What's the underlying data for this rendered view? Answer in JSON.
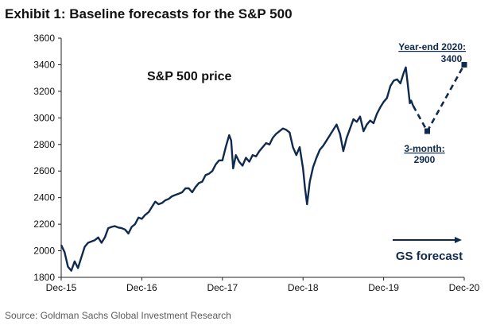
{
  "title": "Exhibit 1: Baseline forecasts for the S&P 500",
  "source": "Source: Goldman Sachs Global Investment Research",
  "colors": {
    "series": "#0f2a4f",
    "axis": "#222222",
    "text": "#111111"
  },
  "chart_data": {
    "type": "line",
    "title": "S&P 500 price",
    "xlabel": "",
    "ylabel": "",
    "ylim": [
      1800,
      3600
    ],
    "yticks": [
      1800,
      2000,
      2200,
      2400,
      2600,
      2800,
      3000,
      3200,
      3400,
      3600
    ],
    "xlim": [
      0,
      60
    ],
    "xticks": [
      {
        "label": "Dec-15",
        "month": 0
      },
      {
        "label": "Dec-16",
        "month": 12
      },
      {
        "label": "Dec-17",
        "month": 24
      },
      {
        "label": "Dec-18",
        "month": 36
      },
      {
        "label": "Dec-19",
        "month": 48
      },
      {
        "label": "Dec-20",
        "month": 60
      }
    ],
    "series": [
      {
        "name": "S&P 500 price",
        "style": "solid",
        "points": [
          [
            0,
            2043
          ],
          [
            0.5,
            1990
          ],
          [
            1,
            1880
          ],
          [
            1.5,
            1850
          ],
          [
            2,
            1920
          ],
          [
            2.5,
            1870
          ],
          [
            3,
            1950
          ],
          [
            3.5,
            2030
          ],
          [
            4,
            2060
          ],
          [
            4.5,
            2070
          ],
          [
            5,
            2080
          ],
          [
            5.5,
            2100
          ],
          [
            6,
            2060
          ],
          [
            6.5,
            2100
          ],
          [
            7,
            2170
          ],
          [
            7.5,
            2180
          ],
          [
            8,
            2185
          ],
          [
            8.5,
            2175
          ],
          [
            9,
            2170
          ],
          [
            9.5,
            2160
          ],
          [
            10,
            2130
          ],
          [
            10.5,
            2180
          ],
          [
            11,
            2200
          ],
          [
            11.5,
            2250
          ],
          [
            12,
            2240
          ],
          [
            12.5,
            2270
          ],
          [
            13,
            2290
          ],
          [
            13.5,
            2330
          ],
          [
            14,
            2370
          ],
          [
            14.5,
            2350
          ],
          [
            15,
            2360
          ],
          [
            15.5,
            2380
          ],
          [
            16,
            2390
          ],
          [
            16.5,
            2410
          ],
          [
            17,
            2420
          ],
          [
            17.5,
            2430
          ],
          [
            18,
            2440
          ],
          [
            18.5,
            2470
          ],
          [
            19,
            2470
          ],
          [
            19.5,
            2440
          ],
          [
            20,
            2480
          ],
          [
            20.5,
            2510
          ],
          [
            21,
            2520
          ],
          [
            21.5,
            2570
          ],
          [
            22,
            2580
          ],
          [
            22.5,
            2600
          ],
          [
            23,
            2650
          ],
          [
            23.5,
            2680
          ],
          [
            24,
            2680
          ],
          [
            24.5,
            2780
          ],
          [
            25,
            2870
          ],
          [
            25.3,
            2830
          ],
          [
            25.6,
            2620
          ],
          [
            26,
            2720
          ],
          [
            26.5,
            2670
          ],
          [
            27,
            2640
          ],
          [
            27.5,
            2700
          ],
          [
            28,
            2670
          ],
          [
            28.5,
            2720
          ],
          [
            29,
            2710
          ],
          [
            29.5,
            2750
          ],
          [
            30,
            2780
          ],
          [
            30.5,
            2810
          ],
          [
            31,
            2800
          ],
          [
            31.5,
            2850
          ],
          [
            32,
            2880
          ],
          [
            32.5,
            2900
          ],
          [
            33,
            2920
          ],
          [
            33.5,
            2910
          ],
          [
            34,
            2890
          ],
          [
            34.5,
            2780
          ],
          [
            35,
            2720
          ],
          [
            35.5,
            2780
          ],
          [
            36,
            2620
          ],
          [
            36.3,
            2470
          ],
          [
            36.6,
            2350
          ],
          [
            37,
            2520
          ],
          [
            37.5,
            2630
          ],
          [
            38,
            2700
          ],
          [
            38.5,
            2760
          ],
          [
            39,
            2790
          ],
          [
            39.5,
            2830
          ],
          [
            40,
            2870
          ],
          [
            40.5,
            2910
          ],
          [
            41,
            2950
          ],
          [
            41.5,
            2880
          ],
          [
            42,
            2750
          ],
          [
            42.5,
            2850
          ],
          [
            43,
            2920
          ],
          [
            43.5,
            2990
          ],
          [
            44,
            2970
          ],
          [
            44.5,
            3010
          ],
          [
            45,
            2900
          ],
          [
            45.5,
            2950
          ],
          [
            46,
            2980
          ],
          [
            46.5,
            2960
          ],
          [
            47,
            3030
          ],
          [
            47.5,
            3080
          ],
          [
            48,
            3120
          ],
          [
            48.5,
            3150
          ],
          [
            49,
            3240
          ],
          [
            49.5,
            3280
          ],
          [
            50,
            3290
          ],
          [
            50.5,
            3260
          ],
          [
            51,
            3340
          ],
          [
            51.3,
            3380
          ],
          [
            51.6,
            3250
          ],
          [
            51.9,
            3110
          ],
          [
            52.1,
            3130
          ],
          [
            52.4,
            3090
          ]
        ]
      },
      {
        "name": "GS forecast",
        "style": "dashed",
        "points": [
          [
            52.4,
            3090
          ],
          [
            54.5,
            2900
          ],
          [
            60,
            3400
          ]
        ]
      }
    ],
    "annotations": [
      {
        "id": "chart-title",
        "text": "S&P 500 price"
      },
      {
        "id": "year-end",
        "text": "Year-end 2020:",
        "value_text": "3400",
        "month": 60,
        "value": 3400
      },
      {
        "id": "three-month",
        "text": "3-month:",
        "value_text": "2900",
        "month": 54.5,
        "value": 2900
      },
      {
        "id": "gs-forecast",
        "text": "GS forecast"
      }
    ]
  }
}
